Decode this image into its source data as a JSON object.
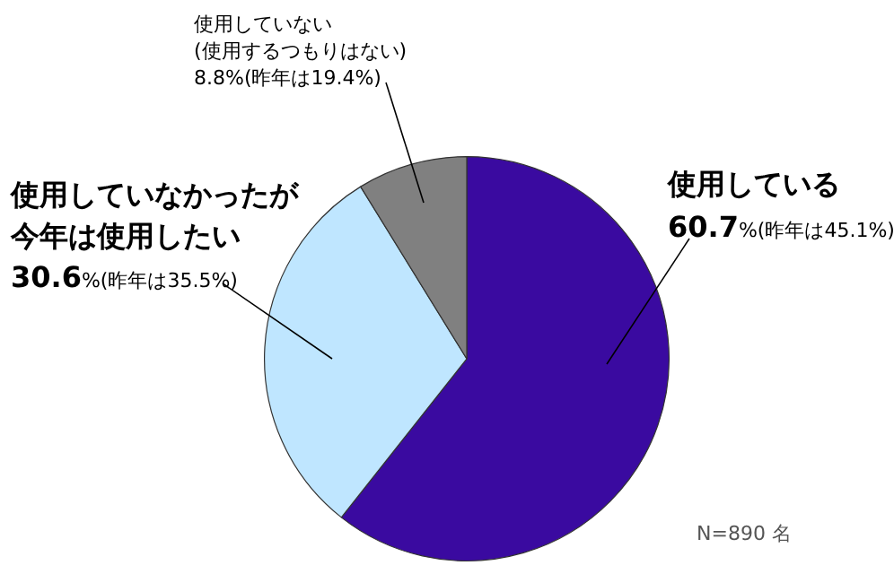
{
  "chart_data": {
    "type": "pie",
    "categories": [
      "使用している",
      "使用していなかったが今年は使用したい",
      "使用していない(使用するつもりはない)"
    ],
    "values": [
      60.7,
      30.6,
      8.8
    ],
    "colors": [
      "#3a0aa0",
      "#bfe6ff",
      "#808080"
    ],
    "value_labels": [
      "60.7%(昨年は45.1%)",
      "30.6%(昨年は35.5%)",
      "8.8%(昨年は19.4%)"
    ],
    "annotations": [
      "N=890 名"
    ],
    "legend": false
  }
}
